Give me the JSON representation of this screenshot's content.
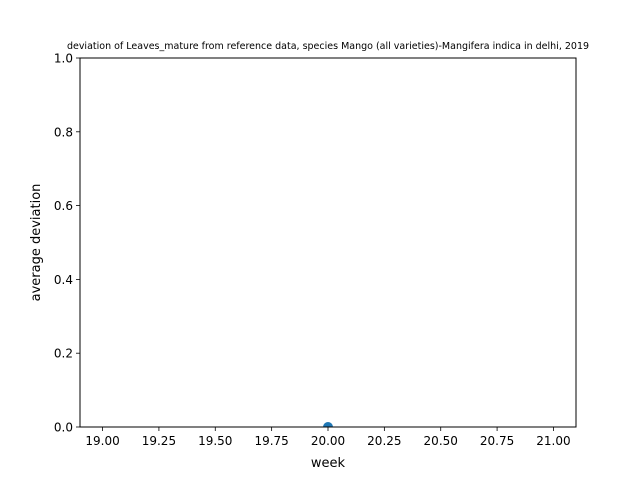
{
  "chart_data": {
    "type": "scatter",
    "title": "deviation of Leaves_mature from reference data, species Mango (all varieties)-Mangifera indica in delhi, 2019",
    "xlabel": "week",
    "ylabel": "average deviation",
    "xlim": [
      18.9,
      21.1
    ],
    "ylim": [
      0,
      1
    ],
    "x_ticks": [
      "19.00",
      "19.25",
      "19.50",
      "19.75",
      "20.00",
      "20.25",
      "20.50",
      "20.75",
      "21.00"
    ],
    "y_ticks": [
      "0.0",
      "0.2",
      "0.4",
      "0.6",
      "0.8",
      "1.0"
    ],
    "grid": false,
    "legend": "none",
    "series": [
      {
        "x": [
          20.0
        ],
        "y": [
          0.0
        ],
        "color": "#1f77b4"
      }
    ]
  }
}
